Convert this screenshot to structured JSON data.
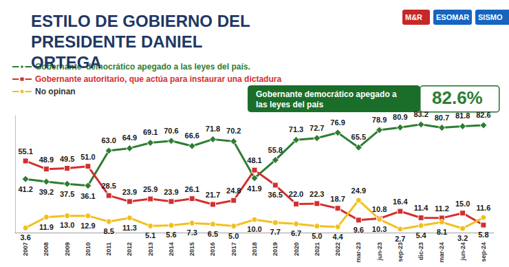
{
  "chart_data": {
    "type": "line",
    "title": "ESTILO DE GOBIERNO DEL PRESIDENTE DANIEL ORTEGA",
    "annotations": [
      {
        "text": "Gobernante democrático apegado a las leyes del país",
        "value_label": "82.6%"
      }
    ],
    "logos": [
      "M&R",
      "ESOMAR",
      "SISMO"
    ],
    "categories": [
      "2007",
      "2008",
      "2009",
      "2010",
      "2011",
      "2012",
      "2013",
      "2014",
      "2015",
      "2016",
      "2017",
      "2018",
      "2019",
      "2020",
      "2021",
      "2022",
      "mar-23",
      "jun-23",
      "sep-23",
      "dic-23",
      "mar-24",
      "jun-24",
      "sep-24"
    ],
    "series": [
      {
        "name": "Gobernante  democrático apegado a las leyes del país.",
        "color": "#2e7d32",
        "marker": "diamond",
        "values": [
          41.2,
          39.2,
          37.5,
          36.1,
          63.0,
          64.9,
          69.1,
          70.6,
          66.6,
          71.8,
          70.2,
          41.9,
          55.8,
          71.3,
          72.7,
          76.9,
          65.5,
          78.9,
          80.9,
          83.2,
          80.7,
          81.8,
          82.6
        ],
        "value_labels": [
          "41.2",
          "39.2",
          "37.5",
          "36.1",
          "63.0",
          "64.9",
          "69.1",
          "70.6",
          "66.6",
          "71.8",
          "70.2",
          "41.9",
          "55.8",
          "71.3",
          "72.7",
          "76.9",
          "65.5",
          "78.9",
          "80.9",
          "83.2",
          "80.7",
          "81.8",
          "82.6"
        ]
      },
      {
        "name": "Gobernante autoritario, que actúa para instaurar una dictadura",
        "color": "#d32f2f",
        "marker": "square",
        "values": [
          55.1,
          48.9,
          49.5,
          51.0,
          28.5,
          23.9,
          25.9,
          23.9,
          26.1,
          21.7,
          24.8,
          48.1,
          36.5,
          22.0,
          22.3,
          18.7,
          9.6,
          10.8,
          16.4,
          11.4,
          11.2,
          15.0,
          5.8
        ],
        "value_labels": [
          "55.1",
          "48.9",
          "49.5",
          "51.0",
          "28.5",
          "23.9",
          "25.9",
          "23.9",
          "26.1",
          "21.7",
          "24.8",
          "48.1",
          "36.5",
          "22.0",
          "22.3",
          "18.7",
          "9.6",
          "10.8",
          "16.4",
          "11.4",
          "11.2",
          "15.0",
          "5.8"
        ]
      },
      {
        "name": "No opinan",
        "color": "#f2c01e",
        "marker": "circle",
        "values": [
          3.6,
          11.9,
          13.0,
          12.9,
          8.5,
          11.3,
          5.1,
          5.6,
          7.3,
          6.5,
          5.0,
          10.0,
          7.7,
          6.7,
          5.0,
          4.4,
          24.9,
          10.3,
          2.7,
          5.4,
          8.1,
          3.2,
          11.6
        ],
        "value_labels": [
          "3.6",
          "11.9",
          "13.0",
          "12.9",
          "8.5",
          "11.3",
          "5.1",
          "5.6",
          "7.3",
          "6.5",
          "5.0",
          "10.0",
          "7.7",
          "6.7",
          "5.0",
          "4.4",
          "24.9",
          "10.3",
          "2.7",
          "5.4",
          "8.1",
          "3.2",
          "11.6"
        ]
      }
    ],
    "ylim": [
      0,
      90
    ],
    "grid": false,
    "legend": "top-left",
    "data_labels": true,
    "tick_labels": "x"
  }
}
